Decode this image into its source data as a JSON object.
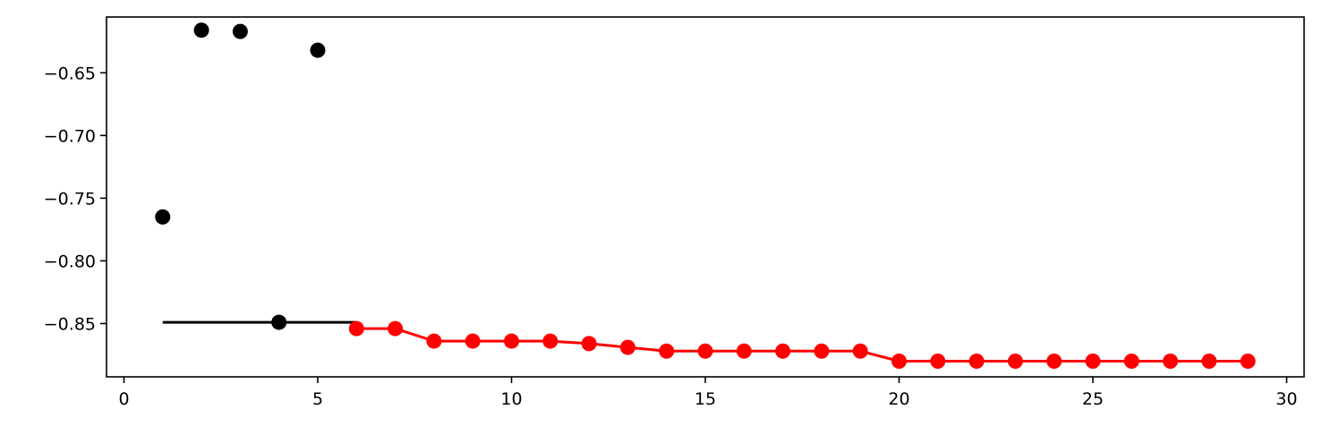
{
  "chart_data": {
    "type": "scatter",
    "title": "",
    "xlabel": "",
    "ylabel": "",
    "xlim": [
      -0.45,
      30.45
    ],
    "ylim": [
      -0.8925,
      -0.6055
    ],
    "x_ticks": [
      0,
      5,
      10,
      15,
      20,
      25,
      30
    ],
    "x_tick_labels": [
      "0",
      "5",
      "10",
      "15",
      "20",
      "25",
      "30"
    ],
    "y_ticks": [
      -0.85,
      -0.8,
      -0.75,
      -0.7,
      -0.65
    ],
    "y_tick_labels": [
      "−0.85",
      "−0.80",
      "−0.75",
      "−0.70",
      "−0.65"
    ],
    "grid": false,
    "legend": "none",
    "series": [
      {
        "kind": "points",
        "color": "#000000",
        "x": [
          1,
          2,
          3,
          4,
          5
        ],
        "y": [
          -0.765,
          -0.616,
          -0.617,
          -0.849,
          -0.632
        ]
      },
      {
        "kind": "hline",
        "color": "#000000",
        "x": [
          1,
          6
        ],
        "y": [
          -0.849,
          -0.849
        ]
      },
      {
        "kind": "line-markers",
        "color": "#ff0000",
        "x": [
          6,
          7,
          8,
          9,
          10,
          11,
          12,
          13,
          14,
          15,
          16,
          17,
          18,
          19,
          20,
          21,
          22,
          23,
          24,
          25,
          26,
          27,
          28,
          29
        ],
        "y": [
          -0.854,
          -0.854,
          -0.864,
          -0.864,
          -0.864,
          -0.864,
          -0.866,
          -0.869,
          -0.872,
          -0.872,
          -0.872,
          -0.872,
          -0.872,
          -0.872,
          -0.88,
          -0.88,
          -0.88,
          -0.88,
          -0.88,
          -0.88,
          -0.88,
          -0.88,
          -0.88,
          -0.88
        ]
      }
    ]
  }
}
